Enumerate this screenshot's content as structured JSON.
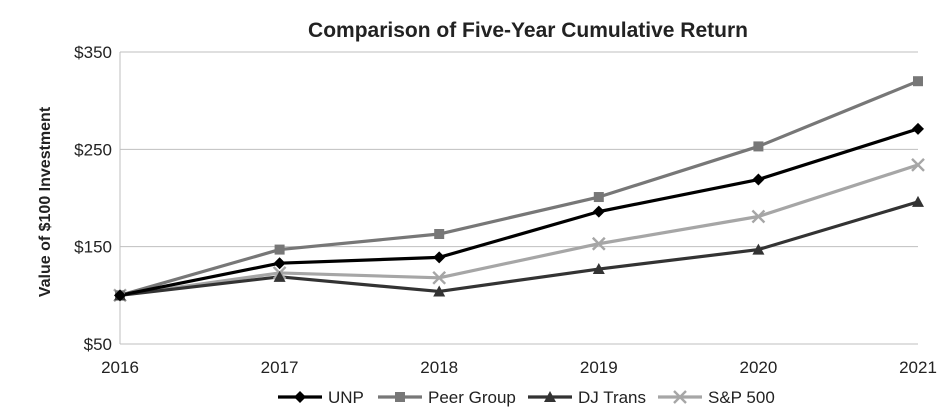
{
  "chart_data": {
    "type": "line",
    "title": "Comparison of Five-Year Cumulative Return",
    "xlabel": "",
    "ylabel": "Value of $100 Investment",
    "x": [
      "2016",
      "2017",
      "2018",
      "2019",
      "2020",
      "2021"
    ],
    "ylim": [
      50,
      350
    ],
    "yticks": [
      "$350",
      "$250",
      "$150",
      "$50"
    ],
    "ytick_values": [
      350,
      250,
      150,
      50
    ],
    "grid": "horizontal",
    "legend_position": "bottom",
    "series": [
      {
        "name": "UNP",
        "marker": "diamond",
        "color": "#000000",
        "values": [
          100,
          133,
          139,
          186,
          219,
          271
        ]
      },
      {
        "name": "Peer Group",
        "marker": "square",
        "color": "#777777",
        "values": [
          100,
          147,
          163,
          201,
          253,
          320
        ]
      },
      {
        "name": "DJ Trans",
        "marker": "triangle",
        "color": "#333333",
        "values": [
          100,
          119,
          104,
          127,
          147,
          196
        ]
      },
      {
        "name": "S&P 500",
        "marker": "x",
        "color": "#a6a6a6",
        "values": [
          100,
          123,
          118,
          153,
          181,
          234
        ]
      }
    ]
  }
}
